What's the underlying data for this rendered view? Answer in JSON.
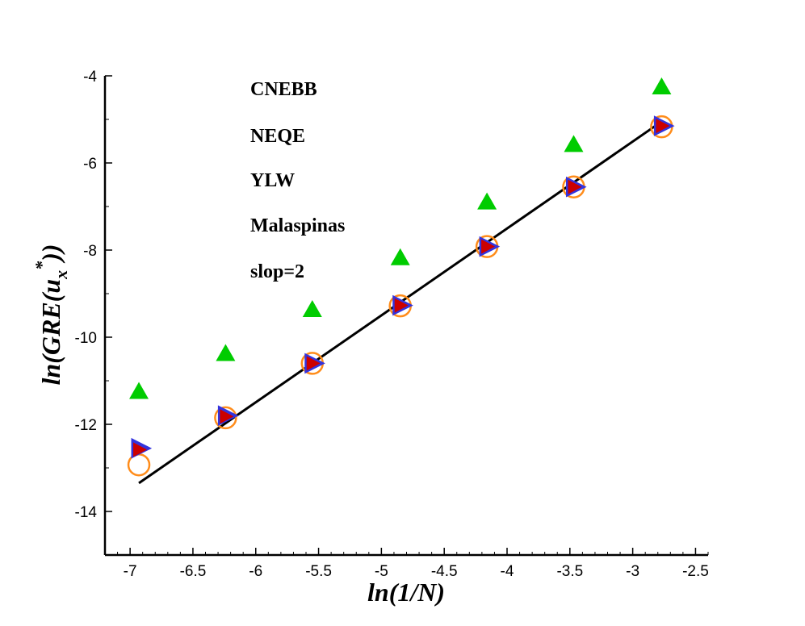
{
  "chart_data": {
    "type": "scatter",
    "title": "",
    "xlabel": "ln(1/N)",
    "ylabel_parts": {
      "pre": "ln(GRE(u",
      "sub": "x",
      "sup": "*",
      "post": "))"
    },
    "xlim": [
      -7.2,
      -2.4
    ],
    "ylim": [
      -15,
      -4
    ],
    "x_ticks": [
      -7,
      -6.5,
      -6,
      -5.5,
      -5,
      -4.5,
      -4,
      -3.5,
      -3,
      -2.5
    ],
    "x_tick_labels": [
      "-7",
      "-6.5",
      "-6",
      "-5.5",
      "-5",
      "-4.5",
      "-4",
      "-3.5",
      "-3",
      "-2.5"
    ],
    "y_ticks": [
      -14,
      -12,
      -10,
      -8,
      -6,
      -4
    ],
    "y_tick_labels": [
      "-14",
      "-12",
      "-10",
      "-8",
      "-6",
      "-4"
    ],
    "grid": false,
    "legend": [
      "CNEBB",
      "NEQE",
      "YLW",
      "Malaspinas",
      "slop=2"
    ],
    "series": [
      {
        "name": "CNEBB",
        "marker": "circle-open",
        "color": "#ff8c1a",
        "x": [
          -6.93,
          -6.24,
          -5.55,
          -4.85,
          -4.16,
          -3.47,
          -2.77
        ],
        "y": [
          -12.93,
          -11.85,
          -10.6,
          -9.28,
          -7.92,
          -6.55,
          -5.17
        ]
      },
      {
        "name": "NEQE",
        "marker": "triangle-right",
        "color": "#3333dd",
        "x": [
          -6.93,
          -6.24,
          -5.55,
          -4.85,
          -4.16,
          -3.47,
          -2.77
        ],
        "y": [
          -12.55,
          -11.8,
          -10.6,
          -9.27,
          -7.92,
          -6.55,
          -5.15
        ]
      },
      {
        "name": "YLW",
        "marker": "triangle-up",
        "color": "#00cc00",
        "x": [
          -6.93,
          -6.24,
          -5.55,
          -4.85,
          -4.16,
          -3.47,
          -2.77
        ],
        "y": [
          -11.25,
          -10.38,
          -9.37,
          -8.18,
          -6.9,
          -5.58,
          -4.26
        ]
      },
      {
        "name": "Malaspinas",
        "marker": "triangle-right-filled",
        "color": "#cc0000",
        "x": [
          -6.93,
          -6.24,
          -5.55,
          -4.85,
          -4.16,
          -3.47,
          -2.77
        ],
        "y": [
          -12.58,
          -11.82,
          -10.6,
          -9.27,
          -7.92,
          -6.55,
          -5.15
        ]
      },
      {
        "name": "slop=2",
        "marker": "line",
        "color": "#000000",
        "x": [
          -6.93,
          -2.77
        ],
        "y": [
          -13.35,
          -5.05
        ]
      }
    ]
  }
}
